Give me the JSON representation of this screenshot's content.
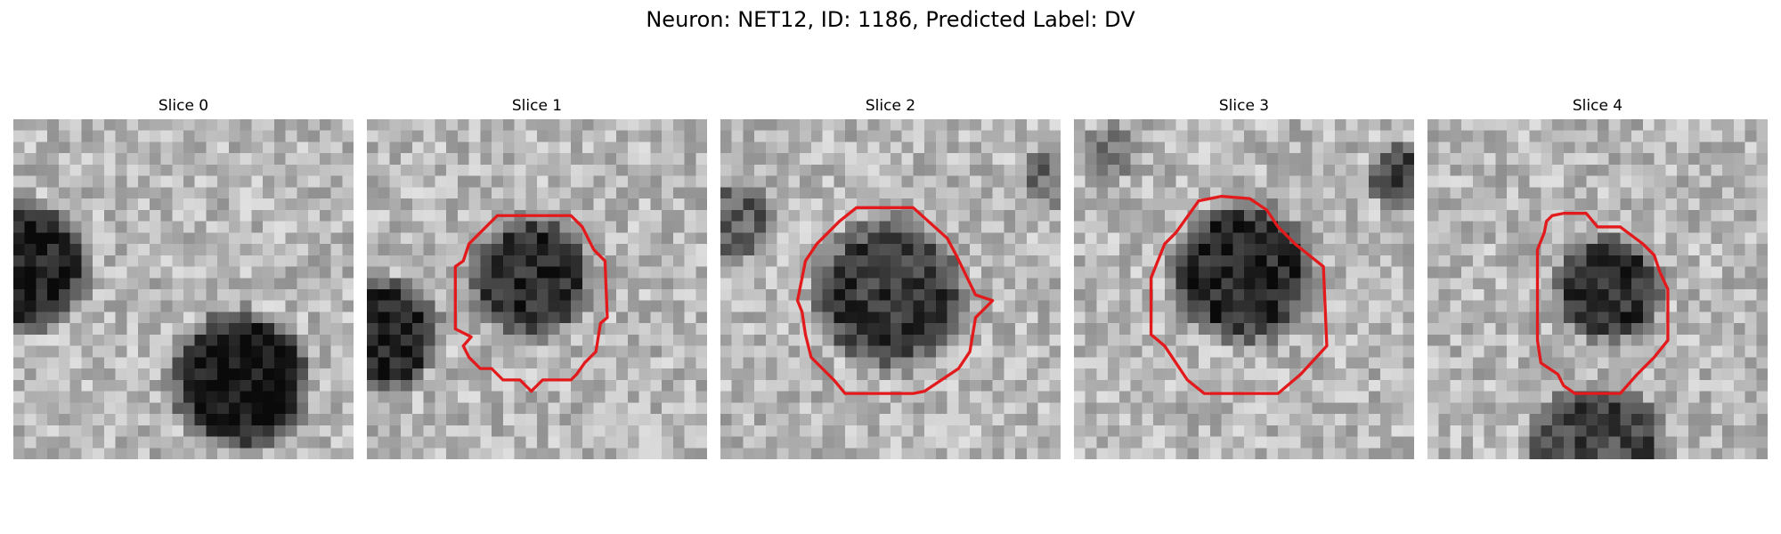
{
  "figure": {
    "title": "Neuron: NET12, ID: 1186, Predicted Label: DV"
  },
  "panels": [
    {
      "label": "Slice 0",
      "has_contour": false,
      "seed": 11
    },
    {
      "label": "Slice 1",
      "has_contour": true,
      "seed": 23
    },
    {
      "label": "Slice 2",
      "has_contour": true,
      "seed": 37
    },
    {
      "label": "Slice 3",
      "has_contour": true,
      "seed": 41
    },
    {
      "label": "Slice 4",
      "has_contour": true,
      "seed": 59
    }
  ],
  "colors": {
    "contour": "#e31a1c",
    "background": "#ffffff"
  },
  "image": {
    "colormap": "grayscale",
    "grid": 30
  }
}
